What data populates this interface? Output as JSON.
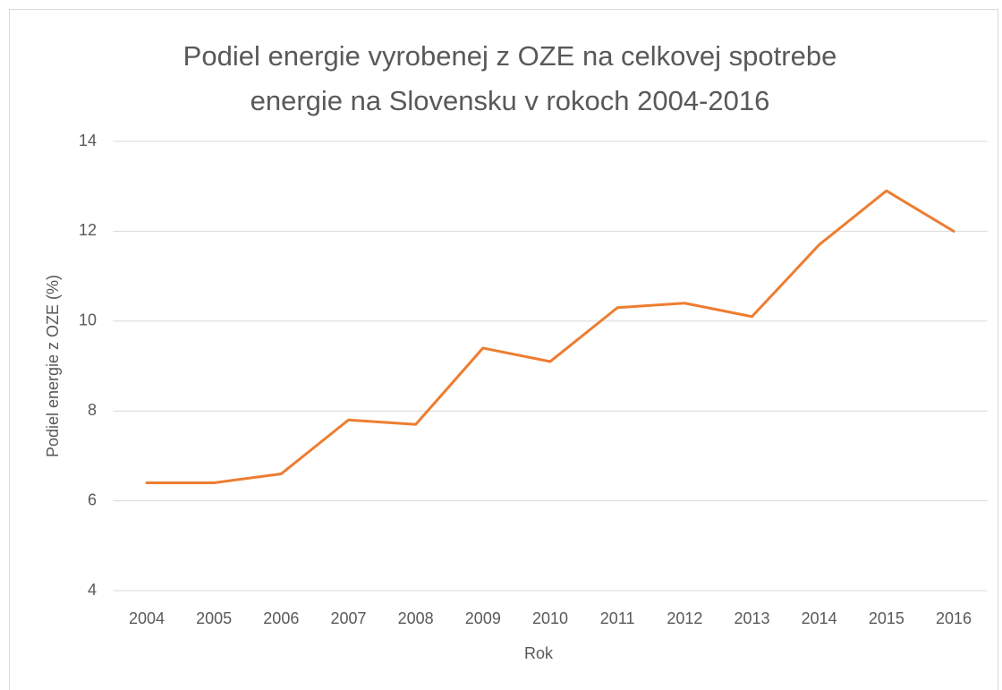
{
  "chart_data": {
    "type": "line",
    "title": "Podiel energie vyrobenej z OZE na celkovej spotrebe energie na Slovensku v rokoch 2004-2016",
    "x_label": "Rok",
    "y_label": "Podiel energie z OZE  (%)",
    "categories": [
      "2004",
      "2005",
      "2006",
      "2007",
      "2008",
      "2009",
      "2010",
      "2011",
      "2012",
      "2013",
      "2014",
      "2015",
      "2016"
    ],
    "series": [
      {
        "name": "Podiel energie z OZE",
        "color": "#ed7d31",
        "values": [
          6.4,
          6.4,
          6.6,
          7.8,
          7.7,
          9.4,
          9.1,
          10.3,
          10.4,
          10.1,
          11.7,
          12.9,
          12.0
        ]
      }
    ],
    "ylim": [
      4,
      14
    ],
    "yticks": [
      4,
      6,
      8,
      10,
      12,
      14
    ],
    "grid": true
  }
}
